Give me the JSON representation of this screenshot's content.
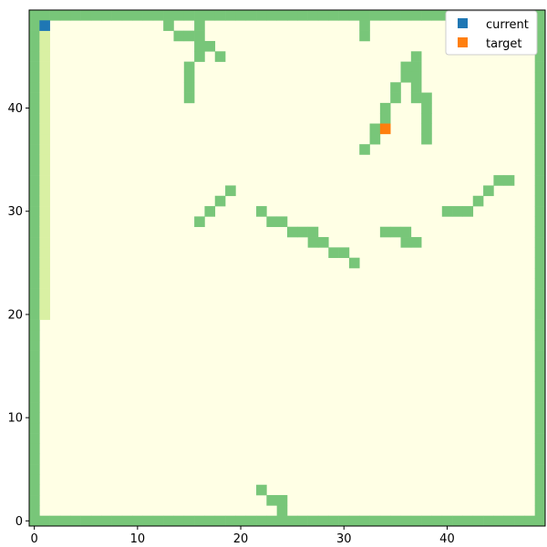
{
  "chart_data": {
    "type": "heatmap",
    "grid_size": 50,
    "xlim": [
      0,
      49
    ],
    "ylim": [
      0,
      49
    ],
    "xticks": [
      0,
      10,
      20,
      30,
      40
    ],
    "yticks": [
      0,
      10,
      20,
      30,
      40
    ],
    "grid": false,
    "legend": {
      "placement": "top-right",
      "entries": [
        "current",
        "target"
      ]
    },
    "colors": {
      "free": "#ffffe5",
      "wall": "#78c679",
      "visited": "#d9f0a3",
      "current": "#1f77b4",
      "target": "#ff7f0e",
      "axis": "#000000"
    },
    "walls": [
      [
        13,
        48
      ],
      [
        16,
        48
      ],
      [
        32,
        48
      ],
      [
        14,
        47
      ],
      [
        15,
        47
      ],
      [
        16,
        47
      ],
      [
        32,
        47
      ],
      [
        16,
        46
      ],
      [
        17,
        46
      ],
      [
        16,
        45
      ],
      [
        18,
        45
      ],
      [
        37,
        45
      ],
      [
        15,
        44
      ],
      [
        36,
        44
      ],
      [
        37,
        44
      ],
      [
        15,
        43
      ],
      [
        36,
        43
      ],
      [
        37,
        43
      ],
      [
        15,
        42
      ],
      [
        35,
        42
      ],
      [
        37,
        42
      ],
      [
        15,
        41
      ],
      [
        35,
        41
      ],
      [
        37,
        41
      ],
      [
        38,
        41
      ],
      [
        34,
        40
      ],
      [
        38,
        40
      ],
      [
        34,
        39
      ],
      [
        38,
        39
      ],
      [
        33,
        38
      ],
      [
        38,
        38
      ],
      [
        33,
        37
      ],
      [
        38,
        37
      ],
      [
        32,
        36
      ],
      [
        45,
        33
      ],
      [
        46,
        33
      ],
      [
        19,
        32
      ],
      [
        44,
        32
      ],
      [
        18,
        31
      ],
      [
        43,
        31
      ],
      [
        17,
        30
      ],
      [
        22,
        30
      ],
      [
        40,
        30
      ],
      [
        41,
        30
      ],
      [
        42,
        30
      ],
      [
        16,
        29
      ],
      [
        23,
        29
      ],
      [
        24,
        29
      ],
      [
        25,
        28
      ],
      [
        26,
        28
      ],
      [
        27,
        28
      ],
      [
        34,
        28
      ],
      [
        35,
        28
      ],
      [
        36,
        28
      ],
      [
        27,
        27
      ],
      [
        28,
        27
      ],
      [
        36,
        27
      ],
      [
        37,
        27
      ],
      [
        29,
        26
      ],
      [
        30,
        26
      ],
      [
        31,
        25
      ],
      [
        22,
        3
      ],
      [
        23,
        2
      ],
      [
        24,
        2
      ],
      [
        24,
        1
      ]
    ],
    "visited_column": {
      "x": 1,
      "y_from": 20,
      "y_to": 47
    },
    "current": [
      1,
      48
    ],
    "target": [
      34,
      38
    ]
  }
}
